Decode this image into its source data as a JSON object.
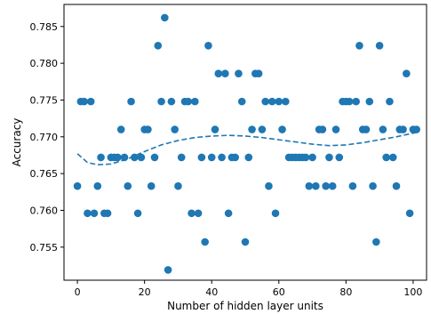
{
  "chart_data": {
    "type": "scatter",
    "xlabel": "Number of hidden layer units",
    "ylabel": "Accuracy",
    "xlim": [
      -4,
      104
    ],
    "ylim": [
      0.7505,
      0.788
    ],
    "xticks": [
      0,
      20,
      40,
      60,
      80,
      100
    ],
    "xtick_labels": [
      "0",
      "20",
      "40",
      "60",
      "80",
      "100"
    ],
    "yticks": [
      0.755,
      0.76,
      0.765,
      0.77,
      0.775,
      0.78,
      0.785
    ],
    "ytick_labels": [
      "0.755",
      "0.760",
      "0.765",
      "0.770",
      "0.775",
      "0.780",
      "0.785"
    ],
    "grid": false,
    "point_color": "#1f77b4",
    "trend_color": "#1f77b4",
    "trend_style": "dashed",
    "points": [
      [
        0,
        0.7633
      ],
      [
        1,
        0.7748
      ],
      [
        2,
        0.7748
      ],
      [
        3,
        0.7596
      ],
      [
        4,
        0.7748
      ],
      [
        5,
        0.7596
      ],
      [
        6,
        0.7633
      ],
      [
        7,
        0.7672
      ],
      [
        8,
        0.7596
      ],
      [
        9,
        0.7596
      ],
      [
        10,
        0.7672
      ],
      [
        11,
        0.7672
      ],
      [
        12,
        0.7672
      ],
      [
        13,
        0.771
      ],
      [
        14,
        0.7672
      ],
      [
        15,
        0.7633
      ],
      [
        16,
        0.7748
      ],
      [
        17,
        0.7672
      ],
      [
        18,
        0.7596
      ],
      [
        19,
        0.7672
      ],
      [
        20,
        0.771
      ],
      [
        21,
        0.771
      ],
      [
        22,
        0.7633
      ],
      [
        23,
        0.7672
      ],
      [
        24,
        0.7824
      ],
      [
        25,
        0.7748
      ],
      [
        26,
        0.7862
      ],
      [
        27,
        0.7519
      ],
      [
        28,
        0.7748
      ],
      [
        29,
        0.771
      ],
      [
        30,
        0.7633
      ],
      [
        31,
        0.7672
      ],
      [
        32,
        0.7748
      ],
      [
        33,
        0.7748
      ],
      [
        34,
        0.7596
      ],
      [
        35,
        0.7748
      ],
      [
        36,
        0.7596
      ],
      [
        37,
        0.7672
      ],
      [
        38,
        0.7557
      ],
      [
        39,
        0.7824
      ],
      [
        40,
        0.7672
      ],
      [
        41,
        0.771
      ],
      [
        42,
        0.7786
      ],
      [
        43,
        0.7672
      ],
      [
        44,
        0.7786
      ],
      [
        45,
        0.7596
      ],
      [
        46,
        0.7672
      ],
      [
        47,
        0.7672
      ],
      [
        48,
        0.7786
      ],
      [
        49,
        0.7748
      ],
      [
        50,
        0.7557
      ],
      [
        51,
        0.7672
      ],
      [
        52,
        0.771
      ],
      [
        53,
        0.7786
      ],
      [
        54,
        0.7786
      ],
      [
        55,
        0.771
      ],
      [
        56,
        0.7748
      ],
      [
        57,
        0.7633
      ],
      [
        58,
        0.7748
      ],
      [
        59,
        0.7596
      ],
      [
        60,
        0.7748
      ],
      [
        61,
        0.771
      ],
      [
        62,
        0.7748
      ],
      [
        63,
        0.7672
      ],
      [
        64,
        0.7672
      ],
      [
        65,
        0.7672
      ],
      [
        66,
        0.7672
      ],
      [
        67,
        0.7672
      ],
      [
        68,
        0.7672
      ],
      [
        69,
        0.7633
      ],
      [
        70,
        0.7672
      ],
      [
        71,
        0.7633
      ],
      [
        72,
        0.771
      ],
      [
        73,
        0.771
      ],
      [
        74,
        0.7633
      ],
      [
        75,
        0.7672
      ],
      [
        76,
        0.7633
      ],
      [
        77,
        0.771
      ],
      [
        78,
        0.7672
      ],
      [
        79,
        0.7748
      ],
      [
        80,
        0.7748
      ],
      [
        81,
        0.7748
      ],
      [
        82,
        0.7633
      ],
      [
        83,
        0.7748
      ],
      [
        84,
        0.7824
      ],
      [
        85,
        0.771
      ],
      [
        86,
        0.771
      ],
      [
        87,
        0.7748
      ],
      [
        88,
        0.7633
      ],
      [
        89,
        0.7557
      ],
      [
        90,
        0.7824
      ],
      [
        91,
        0.771
      ],
      [
        92,
        0.7672
      ],
      [
        93,
        0.7748
      ],
      [
        94,
        0.7672
      ],
      [
        95,
        0.7633
      ],
      [
        96,
        0.771
      ],
      [
        97,
        0.771
      ],
      [
        98,
        0.7786
      ],
      [
        99,
        0.7596
      ],
      [
        100,
        0.771
      ],
      [
        101,
        0.771
      ]
    ],
    "trend_x": [
      0,
      3,
      6,
      10,
      15,
      20,
      25,
      30,
      35,
      40,
      45,
      50,
      55,
      60,
      65,
      70,
      75,
      80,
      85,
      90,
      95,
      100,
      101
    ],
    "trend_y": [
      0.7677,
      0.7665,
      0.7662,
      0.7663,
      0.767,
      0.768,
      0.7689,
      0.7695,
      0.7699,
      0.7701,
      0.7702,
      0.7701,
      0.7699,
      0.7696,
      0.7693,
      0.769,
      0.7688,
      0.7689,
      0.7692,
      0.7696,
      0.77,
      0.7705,
      0.7706
    ]
  }
}
